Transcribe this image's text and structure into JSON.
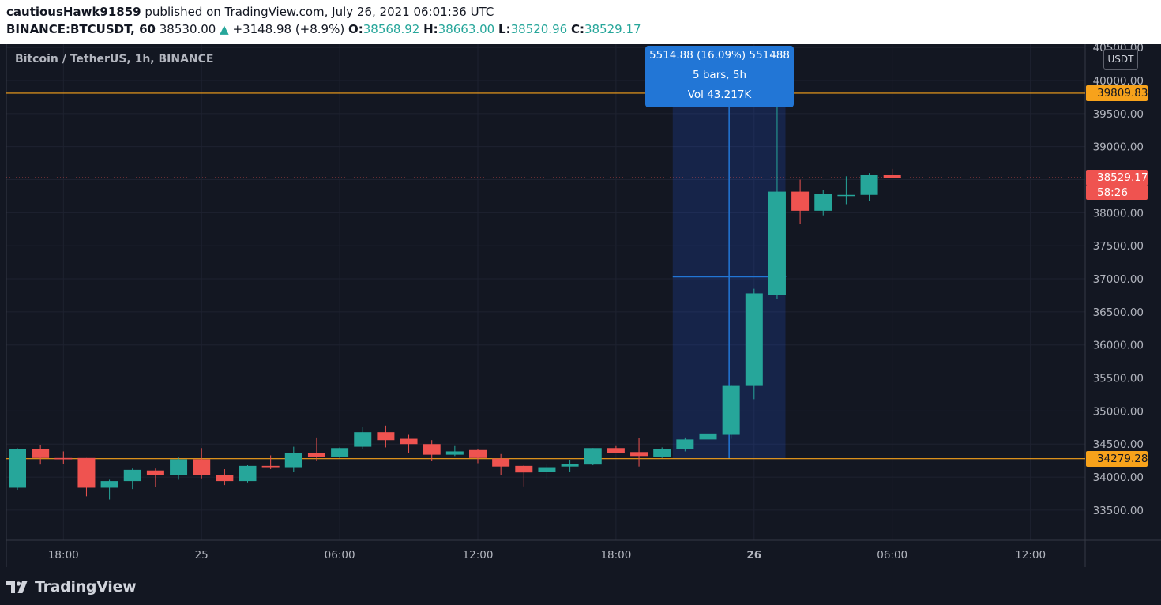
{
  "header": {
    "user": "cautiousHawk91859",
    "published": " published on TradingView.com, July 26, 2021 06:01:36 UTC",
    "symbol": "BINANCE:BTCUSDT, 60",
    "price": "38530.00",
    "change_arrow": "▲",
    "change": "+3148.98 (+8.9%)",
    "o_label": "O:",
    "o_value": "38568.92",
    "h_label": "H:",
    "h_value": "38663.00",
    "l_label": "L:",
    "l_value": "38520.96",
    "c_label": "C:",
    "c_value": "38529.17"
  },
  "colors": {
    "up": "#26a69a",
    "down": "#ef5350",
    "background": "#131722",
    "grid": "#1e2230",
    "level_line": "#f7a21b",
    "measure": "#2276d6"
  },
  "footer": {
    "logo_text": "TradingView",
    "logo_icon": "tradingview-logo-icon"
  },
  "chart_data": {
    "type": "candlestick",
    "title": "Bitcoin / TetherUS, 1h, BINANCE",
    "currency": "USDT",
    "ylim": [
      33000,
      40500
    ],
    "y_ticks": [
      "40500.00",
      "40000.00",
      "39500.00",
      "39000.00",
      "38500.00",
      "38000.00",
      "37500.00",
      "37000.00",
      "36500.00",
      "36000.00",
      "35500.00",
      "35000.00",
      "34500.00",
      "34000.00",
      "33500.00"
    ],
    "x_ticks": [
      {
        "label": "18:00",
        "bar": 2,
        "bold": false
      },
      {
        "label": "25",
        "bar": 8,
        "bold": false
      },
      {
        "label": "06:00",
        "bar": 14,
        "bold": false
      },
      {
        "label": "12:00",
        "bar": 20,
        "bold": false
      },
      {
        "label": "18:00",
        "bar": 26,
        "bold": false
      },
      {
        "label": "26",
        "bar": 32,
        "bold": true
      },
      {
        "label": "06:00",
        "bar": 38,
        "bold": false
      },
      {
        "label": "12:00",
        "bar": 44,
        "bold": false
      }
    ],
    "candles": [
      {
        "o": 33840,
        "h": 34440,
        "l": 33810,
        "c": 34420
      },
      {
        "o": 34420,
        "h": 34480,
        "l": 34190,
        "c": 34290
      },
      {
        "o": 34290,
        "h": 34390,
        "l": 34200,
        "c": 34270
      },
      {
        "o": 34290,
        "h": 34290,
        "l": 33710,
        "c": 33840
      },
      {
        "o": 33840,
        "h": 33960,
        "l": 33660,
        "c": 33940
      },
      {
        "o": 33940,
        "h": 34130,
        "l": 33820,
        "c": 34110
      },
      {
        "o": 34100,
        "h": 34130,
        "l": 33850,
        "c": 34030
      },
      {
        "o": 34030,
        "h": 34300,
        "l": 33960,
        "c": 34270
      },
      {
        "o": 34270,
        "h": 34440,
        "l": 33980,
        "c": 34030
      },
      {
        "o": 34030,
        "h": 34120,
        "l": 33880,
        "c": 33940
      },
      {
        "o": 33940,
        "h": 34180,
        "l": 33920,
        "c": 34170
      },
      {
        "o": 34170,
        "h": 34330,
        "l": 34120,
        "c": 34150
      },
      {
        "o": 34150,
        "h": 34460,
        "l": 34080,
        "c": 34360
      },
      {
        "o": 34360,
        "h": 34600,
        "l": 34240,
        "c": 34310
      },
      {
        "o": 34310,
        "h": 34450,
        "l": 34290,
        "c": 34440
      },
      {
        "o": 34460,
        "h": 34760,
        "l": 34420,
        "c": 34680
      },
      {
        "o": 34680,
        "h": 34780,
        "l": 34450,
        "c": 34560
      },
      {
        "o": 34580,
        "h": 34640,
        "l": 34370,
        "c": 34500
      },
      {
        "o": 34500,
        "h": 34560,
        "l": 34240,
        "c": 34340
      },
      {
        "o": 34340,
        "h": 34470,
        "l": 34320,
        "c": 34390
      },
      {
        "o": 34410,
        "h": 34420,
        "l": 34210,
        "c": 34290
      },
      {
        "o": 34280,
        "h": 34350,
        "l": 34030,
        "c": 34160
      },
      {
        "o": 34170,
        "h": 34180,
        "l": 33860,
        "c": 34070
      },
      {
        "o": 34080,
        "h": 34200,
        "l": 33970,
        "c": 34150
      },
      {
        "o": 34160,
        "h": 34260,
        "l": 34080,
        "c": 34200
      },
      {
        "o": 34190,
        "h": 34440,
        "l": 34180,
        "c": 34440
      },
      {
        "o": 34440,
        "h": 34470,
        "l": 34360,
        "c": 34370
      },
      {
        "o": 34380,
        "h": 34590,
        "l": 34160,
        "c": 34320
      },
      {
        "o": 34310,
        "h": 34450,
        "l": 34290,
        "c": 34420
      },
      {
        "o": 34420,
        "h": 34600,
        "l": 34390,
        "c": 34570
      },
      {
        "o": 34570,
        "h": 34680,
        "l": 34440,
        "c": 34660
      },
      {
        "o": 34640,
        "h": 35390,
        "l": 34580,
        "c": 35380
      },
      {
        "o": 35380,
        "h": 36850,
        "l": 35180,
        "c": 36780
      },
      {
        "o": 36750,
        "h": 39810,
        "l": 36700,
        "c": 38320
      },
      {
        "o": 38320,
        "h": 38500,
        "l": 37830,
        "c": 38030
      },
      {
        "o": 38030,
        "h": 38340,
        "l": 37960,
        "c": 38290
      },
      {
        "o": 38260,
        "h": 38550,
        "l": 38130,
        "c": 38270
      },
      {
        "o": 38270,
        "h": 38600,
        "l": 38180,
        "c": 38570
      },
      {
        "o": 38569,
        "h": 38663,
        "l": 38521,
        "c": 38529
      }
    ],
    "levels": [
      {
        "price": 39809.83,
        "label": "39809.83"
      },
      {
        "price": 34279.28,
        "label": "34279.28"
      }
    ],
    "last_price": {
      "label": "38529.17",
      "countdown": "58:26"
    },
    "measurement": {
      "line1": "5514.88 (16.09%) 551488",
      "line2": "5 bars, 5h",
      "line3": "Vol 43.217K"
    }
  }
}
